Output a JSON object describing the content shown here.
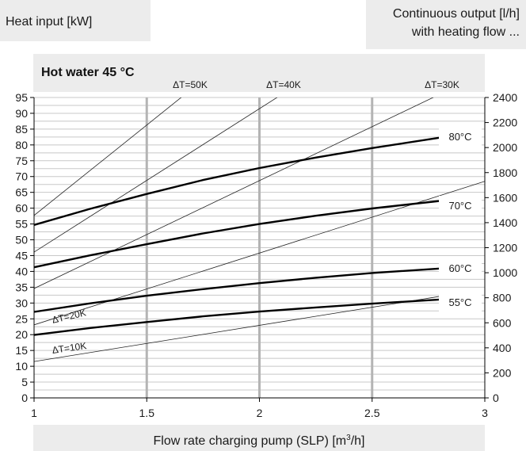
{
  "header": {
    "left_label": "Heat input [kW]",
    "right_label_line1": "Continuous output [l/h]",
    "right_label_line2": "with heating flow ..."
  },
  "chart_data": {
    "type": "line",
    "title": "Hot water 45 °C",
    "xlabel_prefix": "Flow rate charging pump (SLP) [m",
    "xlabel_sup": "3",
    "xlabel_suffix": "/h]",
    "ylabel_left": "Heat input [kW]",
    "ylabel_right": "Continuous output [l/h]",
    "xlim": [
      1,
      3
    ],
    "ylim_left": [
      0,
      95
    ],
    "ylim_right": [
      0,
      2400
    ],
    "x_ticks": [
      "1",
      "1.5",
      "2",
      "2.5",
      "3"
    ],
    "y_left_ticks": [
      "0",
      "5",
      "10",
      "15",
      "20",
      "25",
      "30",
      "35",
      "40",
      "45",
      "50",
      "55",
      "60",
      "65",
      "70",
      "75",
      "80",
      "85",
      "90",
      "95"
    ],
    "y_right_ticks": [
      "0",
      "200",
      "400",
      "600",
      "800",
      "1000",
      "1200",
      "1400",
      "1600",
      "1800",
      "2000",
      "2200",
      "2400"
    ],
    "grid": true,
    "series": [
      {
        "name": "80°C",
        "x": [
          1,
          1.25,
          1.5,
          1.75,
          2,
          2.25,
          2.5,
          2.8
        ],
        "y": [
          54.7,
          59.8,
          64.5,
          68.9,
          72.7,
          76.0,
          79.0,
          82.3
        ]
      },
      {
        "name": "70°C",
        "x": [
          1,
          1.25,
          1.5,
          1.75,
          2,
          2.25,
          2.5,
          2.8
        ],
        "y": [
          41.3,
          45.1,
          48.6,
          52.0,
          55.0,
          57.6,
          59.9,
          62.3
        ]
      },
      {
        "name": "60°C",
        "x": [
          1,
          1.25,
          1.5,
          1.75,
          2,
          2.25,
          2.5,
          2.8
        ],
        "y": [
          27.2,
          29.9,
          32.3,
          34.4,
          36.3,
          38.0,
          39.5,
          40.9
        ]
      },
      {
        "name": "55°C",
        "x": [
          1,
          1.25,
          1.5,
          1.75,
          2,
          2.25,
          2.5,
          2.8
        ],
        "y": [
          19.9,
          22.1,
          24.0,
          25.8,
          27.3,
          28.6,
          29.8,
          31.1
        ]
      }
    ],
    "reference_lines": [
      {
        "name": "ΔT=50K",
        "x": [
          1,
          1.67
        ],
        "y": [
          57.7,
          96
        ]
      },
      {
        "name": "ΔT=40K",
        "x": [
          1,
          2.1
        ],
        "y": [
          46.1,
          96
        ]
      },
      {
        "name": "ΔT=30K",
        "x": [
          1,
          2.8
        ],
        "y": [
          34.6,
          96
        ]
      },
      {
        "name": "ΔT=20K",
        "x": [
          1,
          3
        ],
        "y": [
          23.1,
          68.5
        ]
      },
      {
        "name": "ΔT=10K",
        "x": [
          1,
          2.8
        ],
        "y": [
          11.5,
          32.1
        ]
      }
    ]
  },
  "colors": {
    "panel_bg": "#ececec",
    "grid": "#c8c8c8",
    "curve": "#000000",
    "axis_text": "#1a1a1a"
  }
}
